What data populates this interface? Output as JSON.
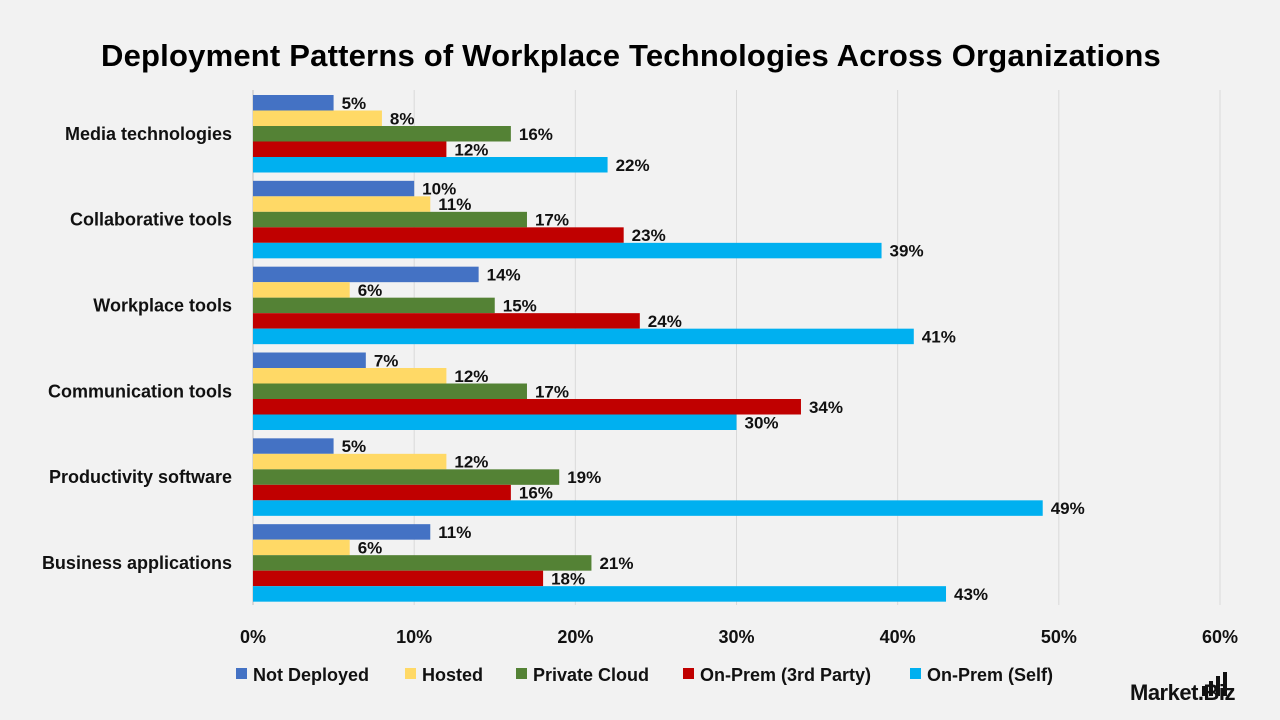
{
  "title": "Deployment Patterns of Workplace Technologies Across Organizations",
  "logo": {
    "text": "Market.Biz"
  },
  "chart_data": {
    "type": "bar",
    "orientation": "horizontal",
    "title": "Deployment Patterns of Workplace Technologies Across Organizations",
    "categories": [
      "Media technologies",
      "Collaborative tools",
      "Workplace tools",
      "Communication tools",
      "Productivity software",
      "Business applications"
    ],
    "series": [
      {
        "name": "Not Deployed",
        "color": "#4472c4",
        "values": [
          5,
          10,
          14,
          7,
          5,
          11
        ]
      },
      {
        "name": "Hosted",
        "color": "#ffd966",
        "values": [
          8,
          11,
          6,
          12,
          12,
          6
        ]
      },
      {
        "name": "Private Cloud",
        "color": "#548235",
        "values": [
          16,
          17,
          15,
          17,
          19,
          21
        ]
      },
      {
        "name": "On-Prem (3rd Party)",
        "color": "#c00000",
        "values": [
          12,
          23,
          24,
          34,
          16,
          18
        ]
      },
      {
        "name": "On-Prem (Self)",
        "color": "#00b0f0",
        "values": [
          22,
          39,
          41,
          30,
          49,
          43
        ]
      }
    ],
    "xlim": [
      0,
      60
    ],
    "xticks": [
      "0%",
      "10%",
      "20%",
      "30%",
      "40%",
      "50%",
      "60%"
    ],
    "value_suffix": "%",
    "grid": "vertical",
    "legend": "bottom"
  }
}
